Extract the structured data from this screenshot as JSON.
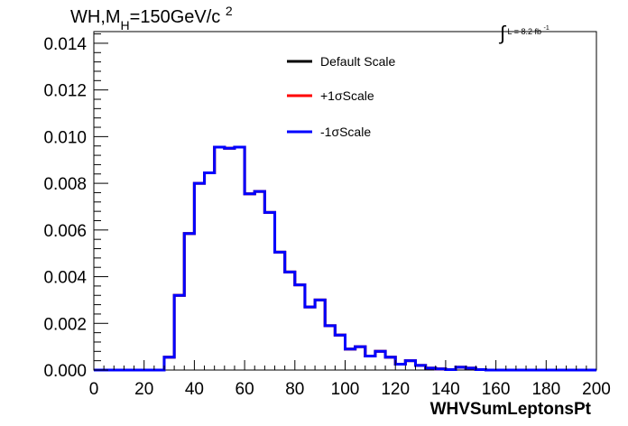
{
  "title": {
    "prefix": "WH,M",
    "subscript": "H",
    "mid": "=150GeV/c",
    "superscript": "2"
  },
  "lumi": {
    "integral": "∫",
    "text": "L = 8.2 fb",
    "superscript": "-1"
  },
  "chart_data": {
    "type": "line",
    "xlabel": "WHVSumLeptonsPt",
    "ylabel": "",
    "xlim": [
      0,
      200
    ],
    "ylim": [
      0,
      0.0145
    ],
    "x_ticks": [
      0,
      20,
      40,
      60,
      80,
      100,
      120,
      140,
      160,
      180,
      200
    ],
    "x_tick_labels": [
      "0",
      "20",
      "40",
      "60",
      "80",
      "100",
      "120",
      "140",
      "160",
      "180",
      "200"
    ],
    "y_ticks": [
      0,
      0.002,
      0.004,
      0.006,
      0.008,
      0.01,
      0.012,
      0.014
    ],
    "y_tick_labels": [
      "0.000",
      "0.002",
      "0.004",
      "0.006",
      "0.008",
      "0.010",
      "0.012",
      "0.014"
    ],
    "grid": false,
    "legend_position": "top-center",
    "bin_edges": [
      0,
      4,
      8,
      12,
      16,
      20,
      24,
      28,
      32,
      36,
      40,
      44,
      48,
      52,
      56,
      60,
      64,
      68,
      72,
      76,
      80,
      84,
      88,
      92,
      96,
      100,
      104,
      108,
      112,
      116,
      120,
      124,
      128,
      132,
      136,
      140,
      144,
      148,
      152,
      156,
      160,
      164,
      168,
      172,
      176,
      180,
      184,
      188,
      192,
      196,
      200
    ],
    "series": [
      {
        "name": "Default Scale",
        "color": "#000000",
        "values": [
          0,
          0,
          0,
          0,
          0,
          0,
          0,
          0.00055,
          0.0032,
          0.00585,
          0.008,
          0.00845,
          0.00955,
          0.0095,
          0.00955,
          0.00755,
          0.00765,
          0.00675,
          0.00505,
          0.0042,
          0.00365,
          0.0027,
          0.003,
          0.0019,
          0.0015,
          0.0009,
          0.001,
          0.0006,
          0.0008,
          0.00055,
          0.00025,
          0.0004,
          0.0002,
          8e-05,
          5e-05,
          2e-05,
          0.00012,
          8e-05,
          2e-05,
          0,
          0,
          0,
          0,
          0,
          0,
          0,
          0,
          0,
          0,
          0
        ]
      },
      {
        "name": "+1σScale",
        "color": "#ff0000",
        "values": [
          0,
          0,
          0,
          0,
          0,
          0,
          0,
          0.00055,
          0.0032,
          0.00585,
          0.008,
          0.00845,
          0.00955,
          0.0095,
          0.00955,
          0.00755,
          0.00765,
          0.00675,
          0.00505,
          0.0042,
          0.00365,
          0.0027,
          0.003,
          0.0019,
          0.0015,
          0.0009,
          0.001,
          0.0006,
          0.0008,
          0.00055,
          0.00025,
          0.0004,
          0.0002,
          8e-05,
          5e-05,
          2e-05,
          0.00012,
          8e-05,
          2e-05,
          0,
          0,
          0,
          0,
          0,
          0,
          0,
          0,
          0,
          0,
          0
        ]
      },
      {
        "name": "-1σScale",
        "color": "#0000ff",
        "values": [
          0,
          0,
          0,
          0,
          0,
          0,
          0,
          0.00055,
          0.0032,
          0.00585,
          0.008,
          0.00845,
          0.00955,
          0.0095,
          0.00955,
          0.00755,
          0.00765,
          0.00675,
          0.00505,
          0.0042,
          0.00365,
          0.0027,
          0.003,
          0.0019,
          0.0015,
          0.0009,
          0.001,
          0.0006,
          0.0008,
          0.00055,
          0.00025,
          0.0004,
          0.0002,
          8e-05,
          5e-05,
          2e-05,
          0.00012,
          8e-05,
          2e-05,
          0,
          0,
          0,
          0,
          0,
          0,
          0,
          0,
          0,
          0,
          0
        ]
      }
    ]
  }
}
